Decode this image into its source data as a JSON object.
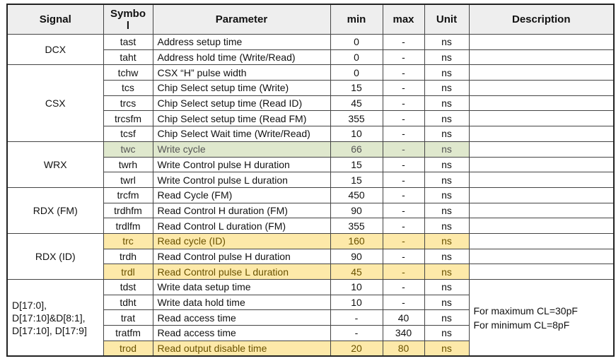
{
  "headers": [
    "Signal",
    "Symbo l",
    "Parameter",
    "min",
    "max",
    "Unit",
    "Description"
  ],
  "highlight_colors": {
    "green": "#dfe8cd",
    "yellow": "#fde9a9"
  },
  "groups": [
    {
      "signal": "DCX",
      "rows": [
        {
          "symbol": "tast",
          "parameter": "Address setup time",
          "min": "0",
          "max": "-",
          "unit": "ns"
        },
        {
          "symbol": "taht",
          "parameter": "Address hold time (Write/Read)",
          "min": "0",
          "max": "-",
          "unit": "ns"
        }
      ]
    },
    {
      "signal": "CSX",
      "rows": [
        {
          "symbol": "tchw",
          "parameter": "CSX “H” pulse width",
          "min": "0",
          "max": "-",
          "unit": "ns"
        },
        {
          "symbol": "tcs",
          "parameter": "Chip Select setup time (Write)",
          "min": "15",
          "max": "-",
          "unit": "ns"
        },
        {
          "symbol": "trcs",
          "parameter": "Chip Select setup time (Read ID)",
          "min": "45",
          "max": "-",
          "unit": "ns"
        },
        {
          "symbol": "trcsfm",
          "parameter": "Chip Select setup time (Read FM)",
          "min": "355",
          "max": "-",
          "unit": "ns"
        },
        {
          "symbol": "tcsf",
          "parameter": "Chip Select Wait time (Write/Read)",
          "min": "10",
          "max": "-",
          "unit": "ns"
        }
      ]
    },
    {
      "signal": "WRX",
      "rows": [
        {
          "symbol": "twc",
          "parameter": "Write cycle",
          "min": "66",
          "max": "-",
          "unit": "ns",
          "highlight": "green"
        },
        {
          "symbol": "twrh",
          "parameter": "Write Control pulse H duration",
          "min": "15",
          "max": "-",
          "unit": "ns"
        },
        {
          "symbol": "twrl",
          "parameter": "Write Control pulse L duration",
          "min": "15",
          "max": "-",
          "unit": "ns"
        }
      ]
    },
    {
      "signal": "RDX (FM)",
      "rows": [
        {
          "symbol": "trcfm",
          "parameter": "Read Cycle (FM)",
          "min": "450",
          "max": "-",
          "unit": "ns"
        },
        {
          "symbol": "trdhfm",
          "parameter": "Read Control H duration (FM)",
          "min": "90",
          "max": "-",
          "unit": "ns"
        },
        {
          "symbol": "trdlfm",
          "parameter": "Read Control L duration (FM)",
          "min": "355",
          "max": "-",
          "unit": "ns"
        }
      ]
    },
    {
      "signal": "RDX (ID)",
      "rows": [
        {
          "symbol": "trc",
          "parameter": "Read cycle (ID)",
          "min": "160",
          "max": "-",
          "unit": "ns",
          "highlight": "yellow"
        },
        {
          "symbol": "trdh",
          "parameter": "Read Control pulse H duration",
          "min": "90",
          "max": "-",
          "unit": "ns"
        },
        {
          "symbol": "trdl",
          "parameter": "Read Control pulse L duration",
          "min": "45",
          "max": "-",
          "unit": "ns",
          "highlight": "yellow"
        }
      ]
    },
    {
      "signal": "D[17:0], D[17:10]&D[8:1], D[17:10], D[17:9]",
      "signal_align": "left",
      "description": [
        "For maximum CL=30pF",
        "For minimum CL=8pF"
      ],
      "rows": [
        {
          "symbol": "tdst",
          "parameter": "Write data setup time",
          "min": "10",
          "max": "-",
          "unit": "ns"
        },
        {
          "symbol": "tdht",
          "parameter": "Write data hold time",
          "min": "10",
          "max": "-",
          "unit": "ns"
        },
        {
          "symbol": "trat",
          "parameter": "Read access time",
          "min": "-",
          "max": "40",
          "unit": "ns"
        },
        {
          "symbol": "tratfm",
          "parameter": "Read access time",
          "min": "-",
          "max": "340",
          "unit": "ns"
        },
        {
          "symbol": "trod",
          "parameter": "Read output disable time",
          "min": "20",
          "max": "80",
          "unit": "ns",
          "highlight": "yellow"
        }
      ]
    }
  ]
}
